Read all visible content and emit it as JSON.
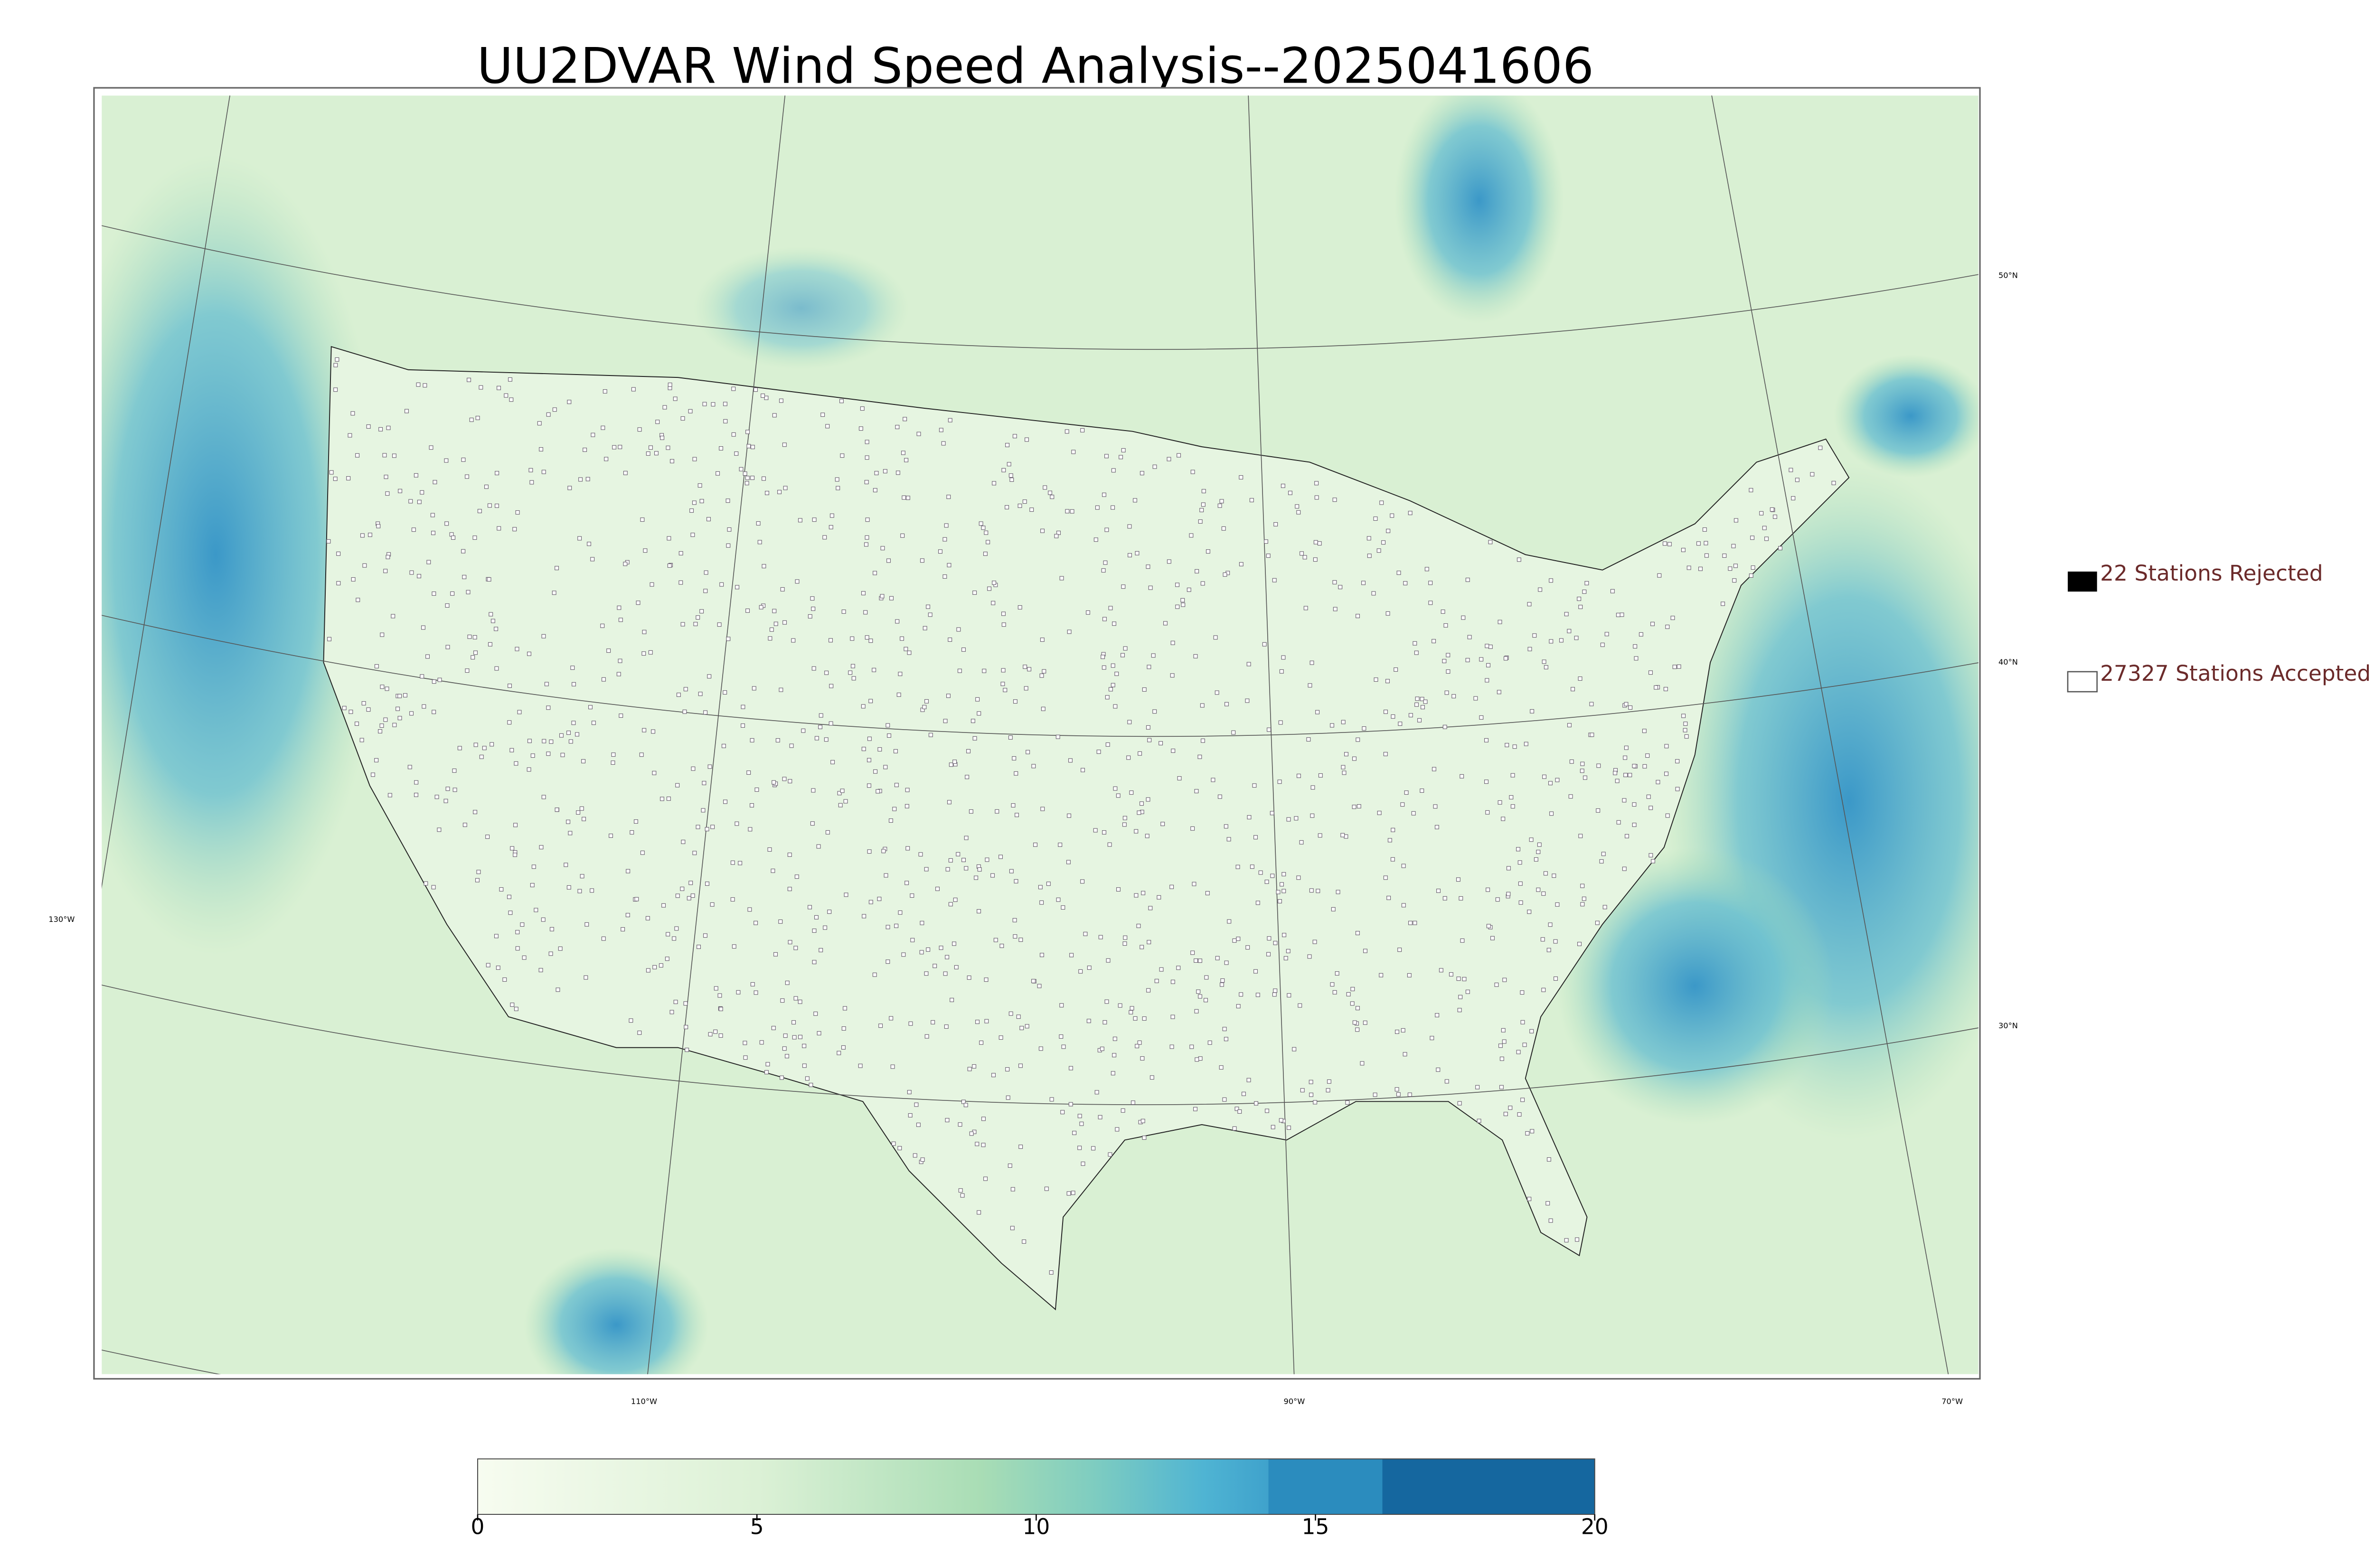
{
  "title": "UU2DVAR Wind Speed Analysis--2025041606",
  "legend": [
    {
      "label": "22 Stations Rejected"
    },
    {
      "label": "27327 Stations Accepted"
    }
  ],
  "graticule": {
    "lat_labels": [
      "50°N",
      "40°N",
      "30°N"
    ],
    "lon_labels": [
      "130°W",
      "110°W",
      "90°W",
      "70°W"
    ]
  },
  "colorbar": {
    "range": [
      0,
      20
    ],
    "ticks": [
      0,
      5,
      10,
      15,
      20
    ]
  }
}
